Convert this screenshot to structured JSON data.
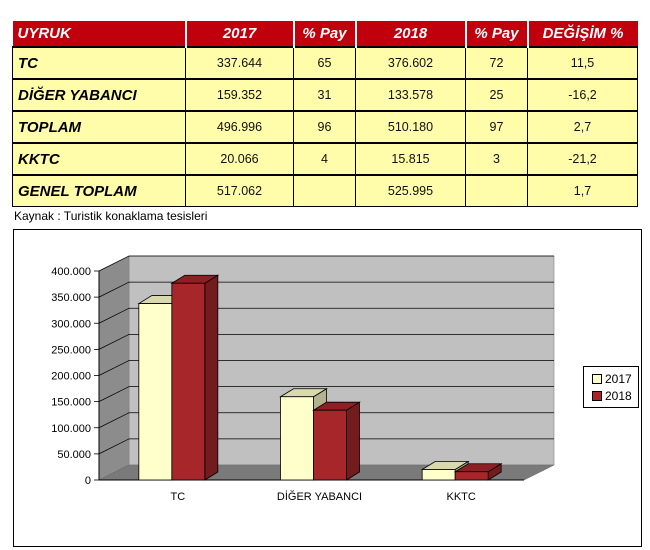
{
  "table": {
    "headers": [
      "UYRUK",
      "2017",
      "% Pay",
      "2018",
      "% Pay",
      "DEĞİŞİM %"
    ],
    "rows": [
      [
        "TC",
        "337.644",
        "65",
        "376.602",
        "72",
        "11,5"
      ],
      [
        "DİĞER YABANCI",
        "159.352",
        "31",
        "133.578",
        "25",
        "-16,2"
      ],
      [
        "TOPLAM",
        "496.996",
        "96",
        "510.180",
        "97",
        "2,7"
      ],
      [
        "KKTC",
        "20.066",
        "4",
        "15.815",
        "3",
        "-21,2"
      ],
      [
        "GENEL TOPLAM",
        "517.062",
        "",
        "525.995",
        "",
        "1,7"
      ]
    ]
  },
  "source": "Kaynak : Turistik konaklama tesisleri",
  "colors": {
    "header_bg": "#c0000c",
    "cell_bg": "#fffcaa",
    "series_2017": "#ffffcc",
    "series_2018": "#a6262a",
    "plot_bg": "#c0c0c0"
  },
  "chart_data": {
    "type": "bar",
    "style": "3d-clustered-column",
    "categories": [
      "TC",
      "DİĞER YABANCI",
      "KKTC"
    ],
    "series": [
      {
        "name": "2017",
        "values": [
          337644,
          159352,
          20066
        ]
      },
      {
        "name": "2018",
        "values": [
          376602,
          133578,
          15815
        ]
      }
    ],
    "ylim": [
      0,
      400000
    ],
    "yticks": [
      0,
      50000,
      100000,
      150000,
      200000,
      250000,
      300000,
      350000,
      400000
    ],
    "ytick_labels": [
      "0",
      "50.000",
      "100.000",
      "150.000",
      "200.000",
      "250.000",
      "300.000",
      "350.000",
      "400.000"
    ],
    "grid": true,
    "legend": "right",
    "title": "",
    "xlabel": "",
    "ylabel": ""
  }
}
